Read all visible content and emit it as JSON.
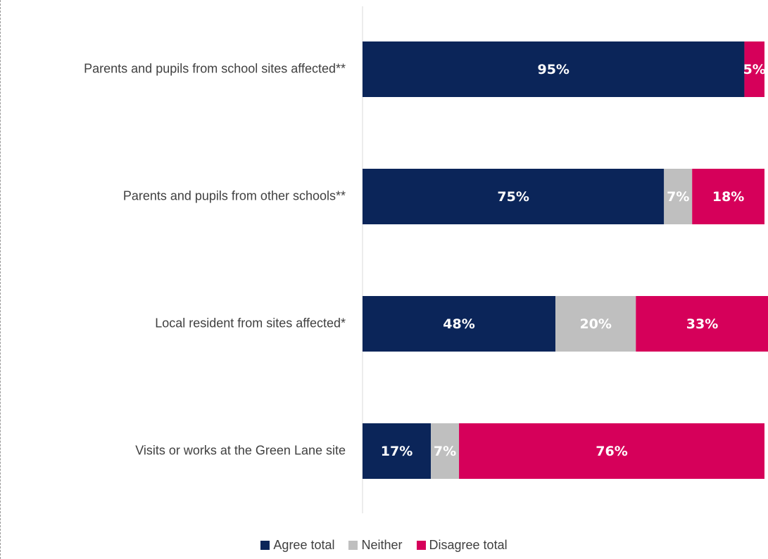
{
  "chart_data": {
    "type": "bar",
    "orientation": "horizontal",
    "stacked": true,
    "categories": [
      "Parents and pupils from school sites affected**",
      "Parents and pupils from other schools**",
      "Local resident from sites affected*",
      "Visits or works at the Green Lane site"
    ],
    "series": [
      {
        "name": "Agree total",
        "color": "#0b2559",
        "values": [
          95,
          75,
          48,
          17
        ],
        "labels": [
          "95%",
          "75%",
          "48%",
          "17%"
        ]
      },
      {
        "name": "Neither",
        "color": "#bfbfbf",
        "values": [
          0,
          7,
          20,
          7
        ],
        "labels": [
          "",
          "7%",
          "20%",
          "7%"
        ]
      },
      {
        "name": "Disagree total",
        "color": "#d6005a",
        "values": [
          5,
          18,
          33,
          76
        ],
        "labels": [
          "5%",
          "18%",
          "33%",
          "76%"
        ]
      }
    ],
    "xlim": [
      0,
      100
    ],
    "grid": false,
    "legend_position": "bottom"
  }
}
